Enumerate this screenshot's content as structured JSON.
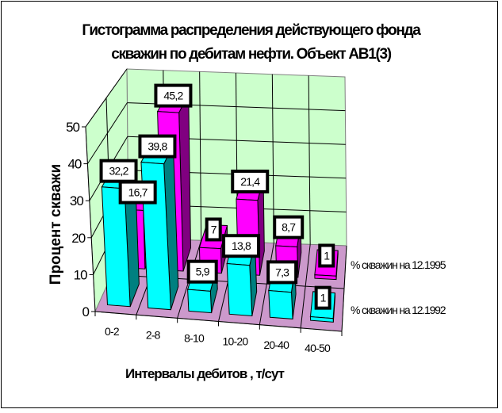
{
  "chart_data": {
    "type": "bar",
    "subtype": "3d-clustered-depth",
    "title_lines": [
      "Гистограмма распределения действующего фонда",
      "скважин по дебитам нефти. Объект АВ1(3)"
    ],
    "xlabel": "Интервалы дебитов , т/сут",
    "ylabel": "Процент скважи",
    "categories": [
      "0-2",
      "2-8",
      "8-10",
      "10-20",
      "20-40",
      "40-50"
    ],
    "y_ticks": [
      "0",
      "10",
      "20",
      "30",
      "40",
      "50"
    ],
    "ylim": [
      0,
      50
    ],
    "grid": true,
    "legend_position": "right",
    "series": [
      {
        "name": "% скважин на 12.1992",
        "values": [
          32.2,
          39.8,
          5.9,
          13.8,
          7.3,
          1
        ],
        "labels": [
          "32,2",
          "39,8",
          "5,9",
          "13,8",
          "7,3",
          "1"
        ],
        "color": "#00FFFF",
        "side_color": "#008080",
        "row": "front"
      },
      {
        "name": "% скважин на 12.1995",
        "values": [
          16.7,
          45.2,
          7,
          21.4,
          8.7,
          1
        ],
        "labels": [
          "16,7",
          "45,2",
          "7",
          "21,4",
          "8,7",
          "1"
        ],
        "color": "#FF00FF",
        "side_color": "#800080",
        "row": "back"
      }
    ],
    "wall_color": "#CCFFCC",
    "floor_color": "#CC99CC"
  }
}
